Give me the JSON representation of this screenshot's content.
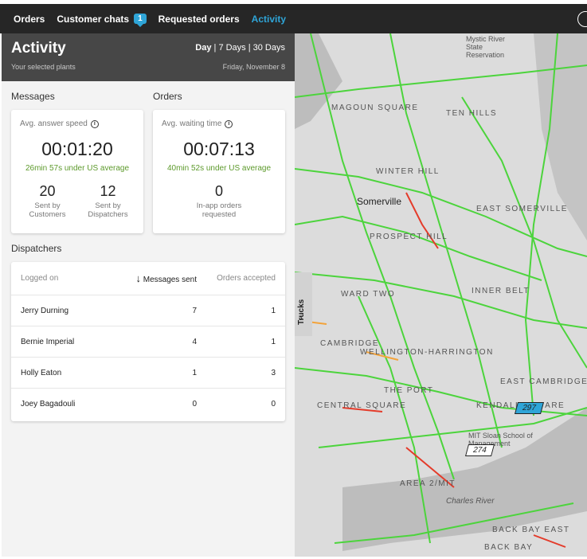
{
  "topbar": {
    "items": [
      {
        "label": "Orders"
      },
      {
        "label": "Customer chats",
        "badge": "1"
      },
      {
        "label": "Requested orders"
      },
      {
        "label": "Activity"
      }
    ]
  },
  "header": {
    "title": "Activity",
    "subtitle": "Your selected plants",
    "range_current": "Day",
    "range_rest": " | 7 Days | 30 Days",
    "date": "Friday, November 8"
  },
  "messages": {
    "section_title": "Messages",
    "label": "Avg. answer speed",
    "value": "00:01:20",
    "comparison": "26min 57s under US average",
    "stats": [
      {
        "value": "20",
        "caption_1": "Sent by",
        "caption_2": "Customers"
      },
      {
        "value": "12",
        "caption_1": "Sent by",
        "caption_2": "Dispatchers"
      }
    ]
  },
  "orders": {
    "section_title": "Orders",
    "label": "Avg. waiting time",
    "value": "00:07:13",
    "comparison": "40min 52s under US average",
    "stat": {
      "value": "0",
      "caption_1": "In-app orders",
      "caption_2": "requested"
    }
  },
  "dispatchers": {
    "section_title": "Dispatchers",
    "columns": [
      "Logged on",
      "Messages sent",
      "Orders accepted"
    ],
    "sort_arrow": "↓",
    "rows": [
      {
        "name": "Jerry Durning",
        "messages": "7",
        "orders": "1"
      },
      {
        "name": "Bernie Imperial",
        "messages": "4",
        "orders": "1"
      },
      {
        "name": "Holly Eaton",
        "messages": "1",
        "orders": "3"
      },
      {
        "name": "Joey Bagadouli",
        "messages": "0",
        "orders": "0"
      }
    ]
  },
  "map": {
    "trucks_tab": "Trucks",
    "markers": [
      {
        "label": "297",
        "color": "#2fa5d8"
      },
      {
        "label": "274",
        "color": "#ffffff"
      }
    ],
    "labels": [
      "MAGOUN SQUARE",
      "TEN HILLS",
      "WINTER HILL",
      "Somerville",
      "EAST SOMERVILLE",
      "PROSPECT HILL",
      "WARD TWO",
      "INNER BELT",
      "CAMBRIDGE",
      "WELLINGTON-HARRINGTON",
      "EAST CAMBRIDGE",
      "THE PORT",
      "KENDALL SQUARE",
      "CENTRAL SQUARE",
      "AREA 2/MIT",
      "Charles River",
      "BACK BAY",
      "BACK BAY EAST",
      "MIT Sloan School of Management",
      "Mystic River State Reservation"
    ]
  },
  "colors": {
    "accent": "#2fa5d8",
    "positive": "#5d9a2c",
    "header_bg": "#474747",
    "topbar_bg": "#262626"
  }
}
